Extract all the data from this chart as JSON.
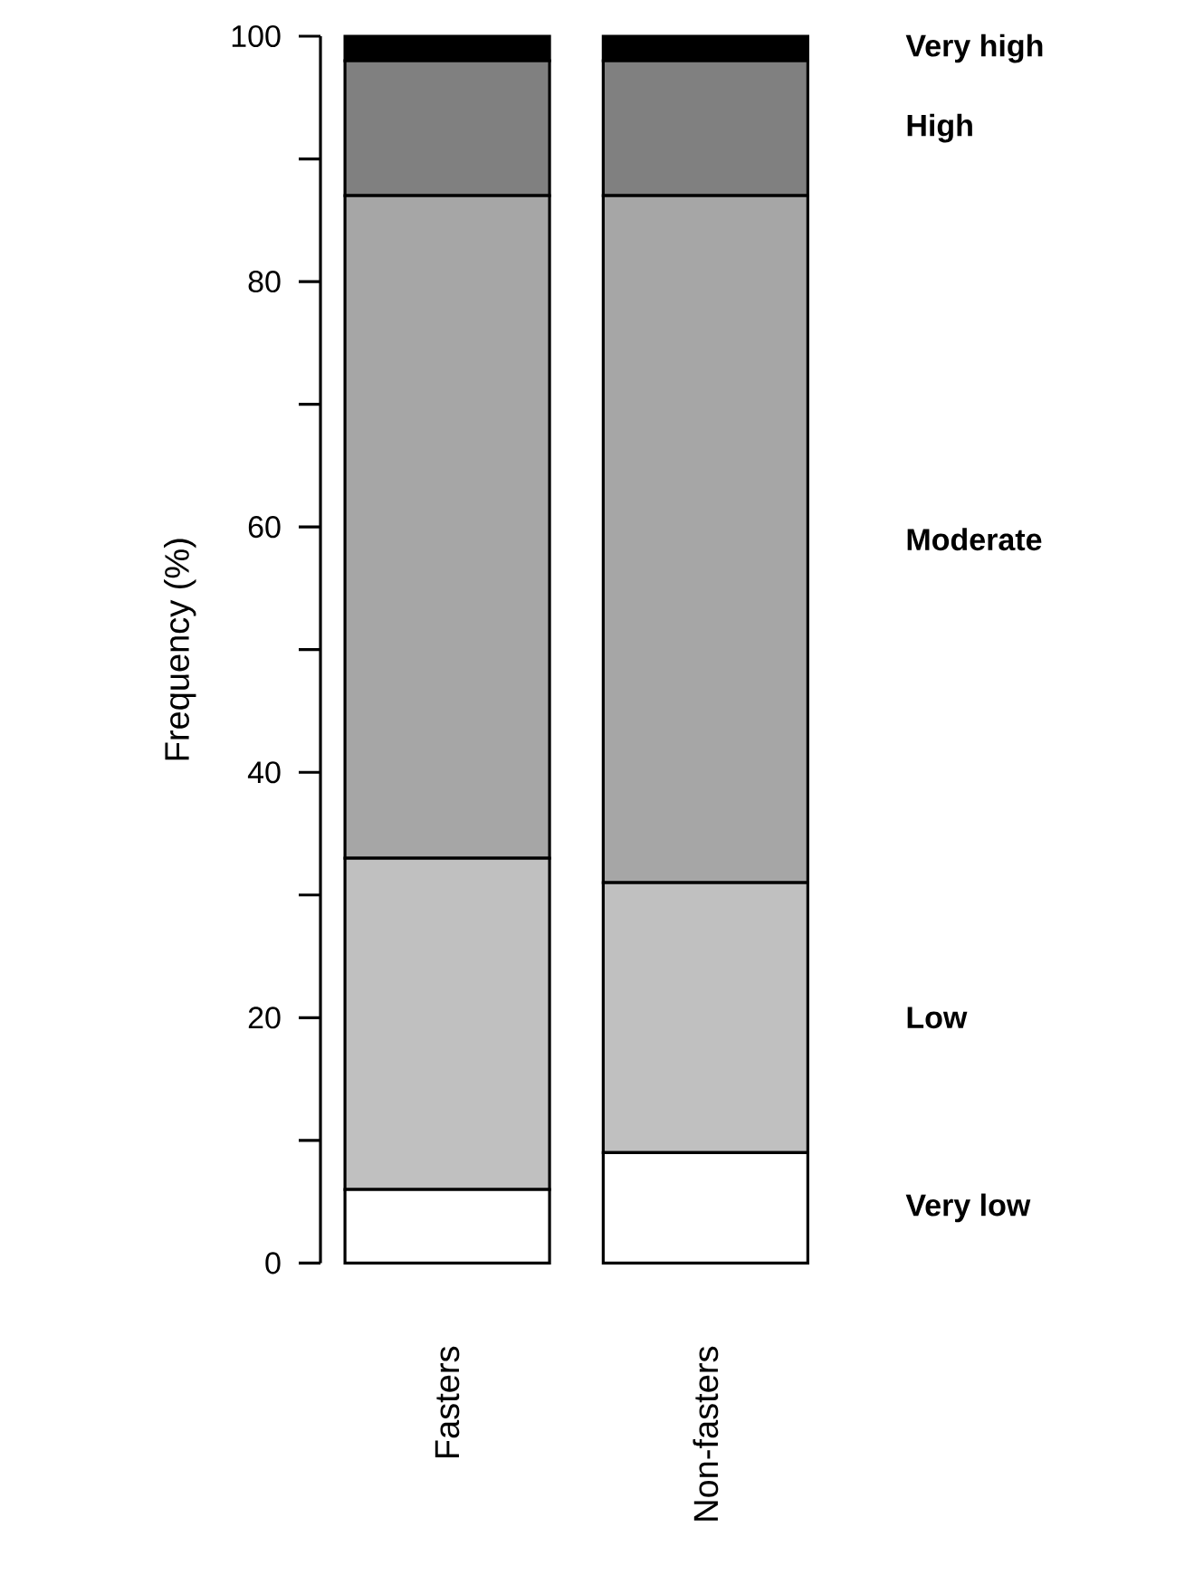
{
  "chart_data": {
    "type": "bar",
    "stacked": true,
    "ylabel": "Frequency (%)",
    "categories": [
      "Fasters",
      "Non-fasters"
    ],
    "series": [
      {
        "name": "Very low",
        "color": "#ffffff",
        "values": [
          6,
          9
        ]
      },
      {
        "name": "Low",
        "color": "#c0c0c0",
        "values": [
          27,
          22
        ]
      },
      {
        "name": "Moderate",
        "color": "#a6a6a6",
        "values": [
          54,
          56
        ]
      },
      {
        "name": "High",
        "color": "#808080",
        "values": [
          11,
          11
        ]
      },
      {
        "name": "Very high",
        "color": "#000000",
        "values": [
          2,
          2
        ]
      }
    ],
    "ylim": [
      0,
      100
    ],
    "yticks": [
      0,
      {
        "value": 10,
        "label": null
      },
      20,
      {
        "value": 30,
        "label": null
      },
      40,
      {
        "value": 50,
        "label": null
      },
      60,
      {
        "value": 70,
        "label": null
      },
      80,
      {
        "value": 90,
        "label": null
      },
      100
    ]
  }
}
